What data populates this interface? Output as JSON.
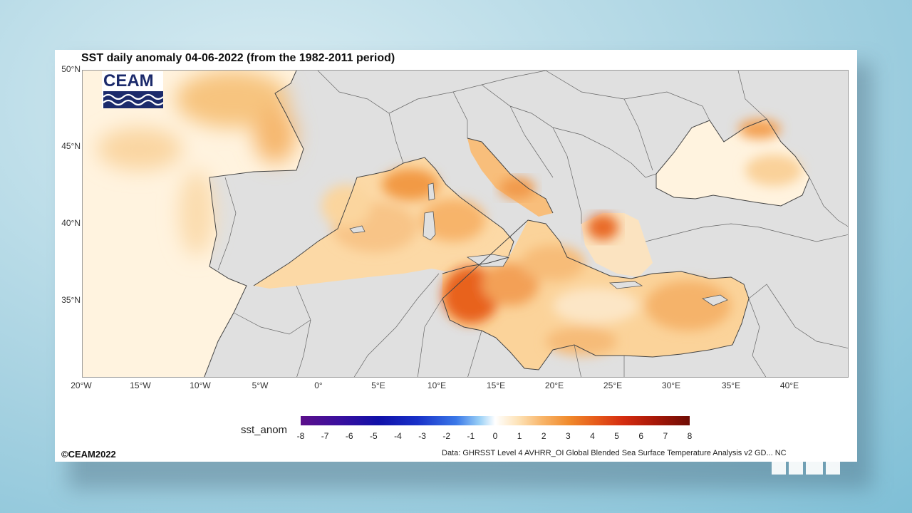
{
  "title": "SST daily anomaly 04-06-2022 (from the 1982-2011 period)",
  "logo": {
    "text": "CEAM"
  },
  "lat_labels": [
    "50°N",
    "45°N",
    "40°N",
    "35°N"
  ],
  "lon_labels": [
    "20°W",
    "15°W",
    "10°W",
    "5°W",
    "0°",
    "5°E",
    "10°E",
    "15°E",
    "20°E",
    "25°E",
    "30°E",
    "35°E",
    "40°E"
  ],
  "colorbar": {
    "title": "sst_anom",
    "ticks": [
      "-8",
      "-7",
      "-6",
      "-5",
      "-4",
      "-3",
      "-2",
      "-1",
      "0",
      "1",
      "2",
      "3",
      "4",
      "5",
      "6",
      "7",
      "8"
    ],
    "min": -8,
    "max": 8
  },
  "copyright": "©CEAM2022",
  "source": "Data: GHRSST Level 4 AVHRR_OI Global Blended Sea Surface Temperature Analysis v2   GD...   NC",
  "colors": {
    "land": "#e0e0e0",
    "sea_neutral": "#fff6e6",
    "anomaly_low": "#fde2b6",
    "anomaly_mid": "#f8b56a",
    "anomaly_high": "#e65a1a",
    "logo_blue": "#1b2a6b"
  }
}
